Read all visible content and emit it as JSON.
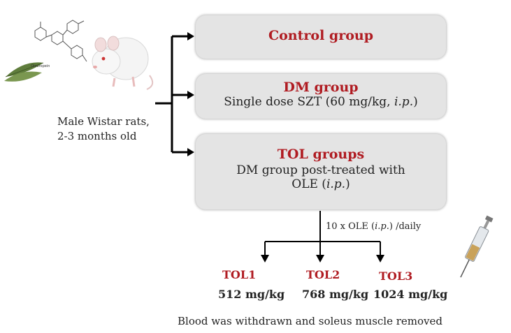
{
  "rats": {
    "line1": "Male Wistar rats,",
    "line2": "2-3 months old"
  },
  "molecule_label": "Oleuropein",
  "groups": [
    {
      "title": "Control group",
      "desc_line1": "",
      "desc_line2": ""
    },
    {
      "title": "DM group",
      "desc_line1": "Single dose  SZT (60 mg/kg, ",
      "desc_italic": "i.p.",
      "desc_end": ")"
    },
    {
      "title": "TOL groups",
      "desc_line1": "DM group  post-treated  with",
      "desc_line2_pre": "OLE (",
      "desc_italic": "i.p.",
      "desc_end": ")"
    }
  ],
  "treatment": {
    "pre": "10 x OLE (",
    "italic": "i.p.",
    "post": ") /daily"
  },
  "tol_groups": [
    {
      "name": "TOL1",
      "dose": "512 mg/kg"
    },
    {
      "name": "TOL2",
      "dose": "768 mg/kg"
    },
    {
      "name": "TOL3",
      "dose": "1024 mg/kg"
    }
  ],
  "footer": "Blood was withdrawn and soleus muscle removed"
}
